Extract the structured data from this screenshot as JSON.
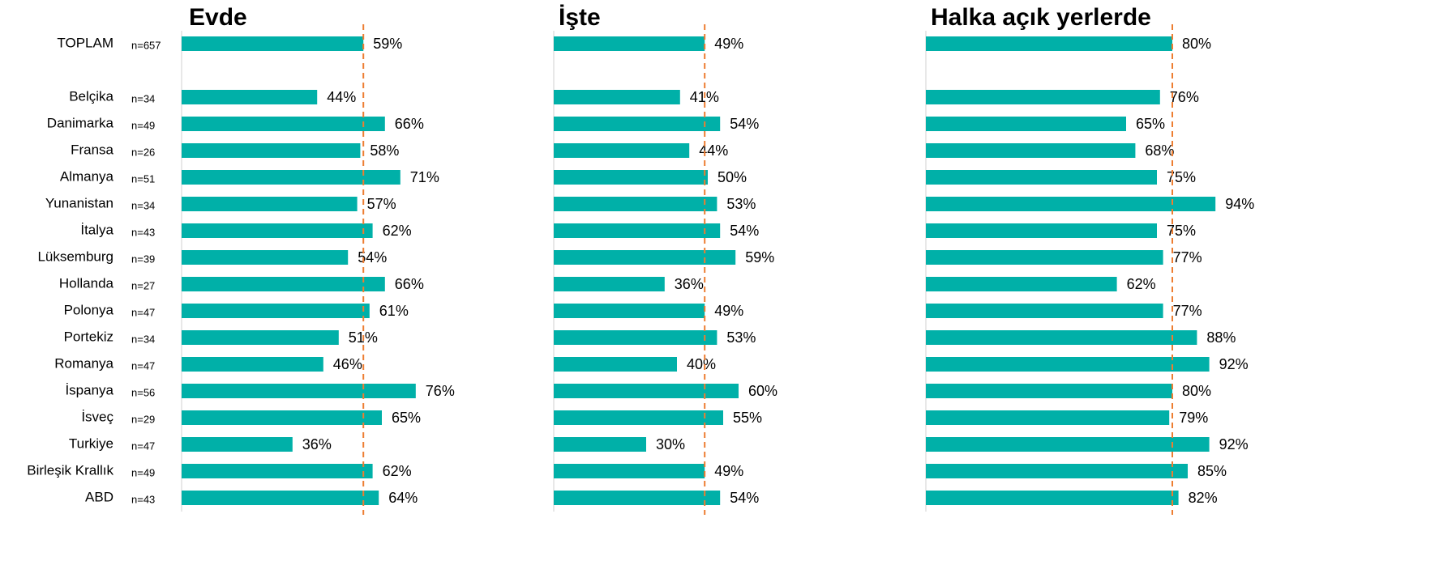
{
  "chart_data": [
    {
      "type": "bar",
      "title": "Evde",
      "color": "#00b0a8",
      "xlim": [
        0,
        100
      ],
      "categories": [
        "TOPLAM",
        "Belçika",
        "Danimarka",
        "Fransa",
        "Almanya",
        "Yunanistan",
        "İtalya",
        "Lüksemburg",
        "Hollanda",
        "Polonya",
        "Portekiz",
        "Romanya",
        "İspanya",
        "İsveç",
        "Turkiye",
        "Birleşik Krallık",
        "ABD"
      ],
      "sample_sizes": [
        "n=657",
        "n=34",
        "n=49",
        "n=26",
        "n=51",
        "n=34",
        "n=43",
        "n=39",
        "n=27",
        "n=47",
        "n=34",
        "n=47",
        "n=56",
        "n=29",
        "n=47",
        "n=49",
        "n=43"
      ],
      "values": [
        59,
        44,
        66,
        58,
        71,
        57,
        62,
        54,
        66,
        61,
        51,
        46,
        76,
        65,
        36,
        62,
        64
      ],
      "value_labels": [
        "59%",
        "44%",
        "66%",
        "58%",
        "71%",
        "57%",
        "62%",
        "54%",
        "66%",
        "61%",
        "51%",
        "46%",
        "76%",
        "65%",
        "36%",
        "62%",
        "64%"
      ]
    },
    {
      "type": "bar",
      "title": "İşte",
      "color": "#00b0a8",
      "xlim": [
        0,
        100
      ],
      "values": [
        49,
        41,
        54,
        44,
        50,
        53,
        54,
        59,
        36,
        49,
        53,
        40,
        60,
        55,
        30,
        49,
        54
      ],
      "value_labels": [
        "49%",
        "41%",
        "54%",
        "44%",
        "50%",
        "53%",
        "54%",
        "59%",
        "36%",
        "49%",
        "53%",
        "40%",
        "60%",
        "55%",
        "30%",
        "49%",
        "54%"
      ]
    },
    {
      "type": "bar",
      "title": "Halka açık yerlerde",
      "color": "#00b0a8",
      "xlim": [
        0,
        100
      ],
      "values": [
        80,
        76,
        65,
        68,
        75,
        94,
        75,
        77,
        62,
        77,
        88,
        92,
        80,
        79,
        92,
        85,
        82
      ],
      "value_labels": [
        "80%",
        "76%",
        "65%",
        "68%",
        "75%",
        "94%",
        "75%",
        "77%",
        "62%",
        "77%",
        "88%",
        "92%",
        "80%",
        "79%",
        "92%",
        "85%",
        "82%"
      ]
    }
  ]
}
